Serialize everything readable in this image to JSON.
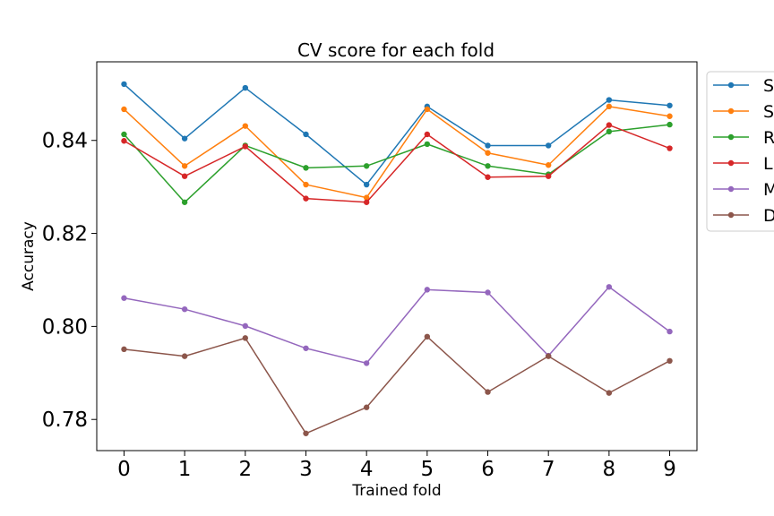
{
  "chart_data": {
    "type": "line",
    "title": "CV score for each fold",
    "xlabel": "Trained fold",
    "ylabel": "Accuracy",
    "x": [
      0,
      1,
      2,
      3,
      4,
      5,
      6,
      7,
      8,
      9
    ],
    "xlim": [
      -0.45,
      9.45
    ],
    "ylim": [
      0.7733,
      0.8569
    ],
    "yticks": [
      0.78,
      0.8,
      0.82,
      0.84
    ],
    "ytick_labels": [
      "0.78",
      "0.80",
      "0.82",
      "0.84"
    ],
    "xtick_labels": [
      "0",
      "1",
      "2",
      "3",
      "4",
      "5",
      "6",
      "7",
      "8",
      "9"
    ],
    "grid": false,
    "legend_placement": "outside-right-top",
    "series": [
      {
        "name": "S",
        "color": "#1f77b4",
        "values": [
          0.8521,
          0.8404,
          0.8513,
          0.8413,
          0.8305,
          0.8473,
          0.8389,
          0.8389,
          0.8487,
          0.8475
        ]
      },
      {
        "name": "S",
        "color": "#ff7f0e",
        "values": [
          0.8467,
          0.8345,
          0.8431,
          0.8305,
          0.8277,
          0.8467,
          0.8373,
          0.8347,
          0.8473,
          0.8452
        ]
      },
      {
        "name": "R",
        "color": "#2ca02c",
        "values": [
          0.8413,
          0.8267,
          0.8389,
          0.8341,
          0.8345,
          0.8392,
          0.8345,
          0.8327,
          0.8419,
          0.8434
        ]
      },
      {
        "name": "L",
        "color": "#d62728",
        "values": [
          0.8399,
          0.8323,
          0.8387,
          0.8275,
          0.8267,
          0.8413,
          0.8321,
          0.8323,
          0.8433,
          0.8383
        ]
      },
      {
        "name": "M",
        "color": "#9467bd",
        "values": [
          0.8061,
          0.8037,
          0.8001,
          0.7953,
          0.7921,
          0.8079,
          0.8073,
          0.7937,
          0.8085,
          0.7989
        ]
      },
      {
        "name": "D",
        "color": "#8c564b",
        "values": [
          0.7951,
          0.7936,
          0.7975,
          0.777,
          0.7826,
          0.7978,
          0.7859,
          0.7936,
          0.7857,
          0.7926
        ]
      }
    ]
  }
}
